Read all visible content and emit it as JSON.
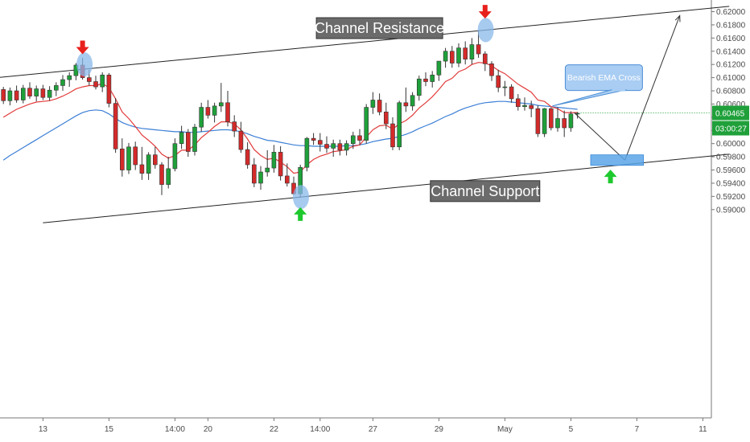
{
  "chart_data": {
    "type": "candlestick",
    "title": "",
    "xlabel": "",
    "ylabel": "",
    "ylim": [
      0.5888,
      0.621
    ],
    "y_ticks": [
      "0.62000",
      "0.61800",
      "0.61600",
      "0.61400",
      "0.61200",
      "0.61000",
      "0.60800",
      "0.60600",
      "0.60400",
      "0.60200",
      "0.60000",
      "0.59800",
      "0.59600",
      "0.59400",
      "0.59200",
      "0.59000"
    ],
    "x_ticks": [
      {
        "label": "13",
        "i": 6
      },
      {
        "label": "15",
        "i": 16
      },
      {
        "label": "14:00",
        "i": 26
      },
      {
        "label": "20",
        "i": 31
      },
      {
        "label": "22",
        "i": 41
      },
      {
        "label": "14:00",
        "i": 48
      },
      {
        "label": "27",
        "i": 56
      },
      {
        "label": "29",
        "i": 66
      },
      {
        "label": "May",
        "i": 76
      },
      {
        "label": "5",
        "i": 86
      },
      {
        "label": "7",
        "i": 96
      },
      {
        "label": "11",
        "i": 106
      }
    ],
    "last_price_label": "0.60465",
    "countdown_label": "03:00:27",
    "colors": {
      "up": "#1fa03a",
      "down": "#d42a2a",
      "ema_fast": "#e23b3b",
      "ema_slow": "#3c7fd6",
      "last_price_bg": "#1fa03a",
      "annotation_box": "#6b6b6b",
      "marker_red": "#e8201c",
      "marker_green": "#1ec92e",
      "ellipse": "#8ab8ea",
      "target_box": "#5aa5e8"
    },
    "candles": [
      [
        0.6082,
        0.6086,
        0.606,
        0.6065
      ],
      [
        0.6065,
        0.6085,
        0.6058,
        0.608
      ],
      [
        0.608,
        0.6088,
        0.6062,
        0.6066
      ],
      [
        0.6066,
        0.6089,
        0.6061,
        0.6084
      ],
      [
        0.6084,
        0.6093,
        0.6068,
        0.6072
      ],
      [
        0.6072,
        0.6088,
        0.6064,
        0.6083
      ],
      [
        0.6083,
        0.6089,
        0.6066,
        0.607
      ],
      [
        0.607,
        0.6087,
        0.6065,
        0.6081
      ],
      [
        0.6081,
        0.6093,
        0.6072,
        0.6088
      ],
      [
        0.6088,
        0.6104,
        0.608,
        0.6097
      ],
      [
        0.6097,
        0.6108,
        0.6086,
        0.6103
      ],
      [
        0.6103,
        0.6122,
        0.6096,
        0.6119
      ],
      [
        0.6119,
        0.613,
        0.6097,
        0.61
      ],
      [
        0.61,
        0.6112,
        0.6088,
        0.6094
      ],
      [
        0.6094,
        0.6103,
        0.6082,
        0.6086
      ],
      [
        0.6086,
        0.6108,
        0.6078,
        0.6104
      ],
      [
        0.6104,
        0.6107,
        0.6055,
        0.6061
      ],
      [
        0.6061,
        0.6069,
        0.5986,
        0.5992
      ],
      [
        0.5992,
        0.6008,
        0.595,
        0.596
      ],
      [
        0.596,
        0.6001,
        0.5954,
        0.5995
      ],
      [
        0.5995,
        0.6003,
        0.596,
        0.5968
      ],
      [
        0.5968,
        0.5995,
        0.5945,
        0.5955
      ],
      [
        0.5955,
        0.5987,
        0.5945,
        0.5983
      ],
      [
        0.5983,
        0.5995,
        0.5962,
        0.5968
      ],
      [
        0.5968,
        0.5972,
        0.5922,
        0.5938
      ],
      [
        0.5938,
        0.598,
        0.5932,
        0.5962
      ],
      [
        0.5962,
        0.6008,
        0.5958,
        0.6
      ],
      [
        0.6,
        0.6027,
        0.5992,
        0.6017
      ],
      [
        0.6017,
        0.6022,
        0.598,
        0.5988
      ],
      [
        0.5988,
        0.603,
        0.5982,
        0.6025
      ],
      [
        0.6025,
        0.6062,
        0.6018,
        0.6055
      ],
      [
        0.6055,
        0.6066,
        0.6038,
        0.6043
      ],
      [
        0.6043,
        0.6062,
        0.6032,
        0.6057
      ],
      [
        0.6057,
        0.6092,
        0.6048,
        0.6062
      ],
      [
        0.6062,
        0.608,
        0.6026,
        0.6033
      ],
      [
        0.6033,
        0.6043,
        0.601,
        0.6019
      ],
      [
        0.6019,
        0.6033,
        0.5986,
        0.5991
      ],
      [
        0.5991,
        0.6002,
        0.5962,
        0.5968
      ],
      [
        0.5968,
        0.5978,
        0.5934,
        0.594
      ],
      [
        0.594,
        0.5966,
        0.593,
        0.5957
      ],
      [
        0.5957,
        0.599,
        0.595,
        0.5963
      ],
      [
        0.5963,
        0.5998,
        0.5956,
        0.5987
      ],
      [
        0.5987,
        0.5996,
        0.5944,
        0.5951
      ],
      [
        0.5951,
        0.597,
        0.5935,
        0.594
      ],
      [
        0.594,
        0.595,
        0.5922,
        0.5924
      ],
      [
        0.5924,
        0.5968,
        0.5918,
        0.5964
      ],
      [
        0.5964,
        0.601,
        0.5958,
        0.6008
      ],
      [
        0.6008,
        0.6016,
        0.5998,
        0.6005
      ],
      [
        0.6005,
        0.6016,
        0.5988,
        0.5999
      ],
      [
        0.5999,
        0.6011,
        0.5986,
        0.5993
      ],
      [
        0.5993,
        0.6006,
        0.598,
        0.6
      ],
      [
        0.6,
        0.6006,
        0.5982,
        0.599
      ],
      [
        0.599,
        0.6005,
        0.5982,
        0.6
      ],
      [
        0.6,
        0.6018,
        0.5992,
        0.6012
      ],
      [
        0.6012,
        0.6022,
        0.5998,
        0.6005
      ],
      [
        0.6005,
        0.606,
        0.6,
        0.6055
      ],
      [
        0.6055,
        0.6078,
        0.6045,
        0.6066
      ],
      [
        0.6066,
        0.6076,
        0.6043,
        0.6048
      ],
      [
        0.6048,
        0.6062,
        0.6022,
        0.603
      ],
      [
        0.603,
        0.604,
        0.599,
        0.5995
      ],
      [
        0.5995,
        0.6065,
        0.599,
        0.6062
      ],
      [
        0.6062,
        0.6085,
        0.6048,
        0.6057
      ],
      [
        0.6057,
        0.6078,
        0.605,
        0.6073
      ],
      [
        0.6073,
        0.6103,
        0.6065,
        0.6098
      ],
      [
        0.6098,
        0.6108,
        0.6087,
        0.6094
      ],
      [
        0.6094,
        0.611,
        0.6085,
        0.6104
      ],
      [
        0.6104,
        0.6125,
        0.6095,
        0.6125
      ],
      [
        0.6125,
        0.6145,
        0.6115,
        0.614
      ],
      [
        0.614,
        0.6148,
        0.6115,
        0.6122
      ],
      [
        0.6122,
        0.6152,
        0.6116,
        0.6145
      ],
      [
        0.6145,
        0.6155,
        0.612,
        0.6128
      ],
      [
        0.6128,
        0.616,
        0.612,
        0.615
      ],
      [
        0.615,
        0.6172,
        0.613,
        0.6136
      ],
      [
        0.6136,
        0.614,
        0.611,
        0.6121
      ],
      [
        0.6121,
        0.6125,
        0.6095,
        0.6103
      ],
      [
        0.6103,
        0.6112,
        0.6078,
        0.6085
      ],
      [
        0.6085,
        0.6095,
        0.6072,
        0.6086
      ],
      [
        0.6086,
        0.609,
        0.6062,
        0.6068
      ],
      [
        0.6068,
        0.6075,
        0.605,
        0.6056
      ],
      [
        0.6056,
        0.607,
        0.605,
        0.6058
      ],
      [
        0.6058,
        0.6065,
        0.604,
        0.6053
      ],
      [
        0.6053,
        0.6058,
        0.601,
        0.6015
      ],
      [
        0.6015,
        0.6054,
        0.601,
        0.6053
      ],
      [
        0.6053,
        0.6055,
        0.602,
        0.6024
      ],
      [
        0.6024,
        0.6055,
        0.6018,
        0.6038
      ],
      [
        0.6038,
        0.605,
        0.601,
        0.6024
      ],
      [
        0.6024,
        0.6049,
        0.6018,
        0.6045
      ],
      [
        0.6045,
        0.6048,
        0.6038,
        0.6046
      ]
    ],
    "ema_fast": [
      0.604,
      0.6046,
      0.6052,
      0.6056,
      0.606,
      0.6063,
      0.6064,
      0.6065,
      0.6068,
      0.6072,
      0.6077,
      0.6083,
      0.6086,
      0.6088,
      0.6088,
      0.6091,
      0.6085,
      0.6068,
      0.6048,
      0.6038,
      0.6026,
      0.6013,
      0.6005,
      0.5996,
      0.5984,
      0.5978,
      0.5982,
      0.599,
      0.599,
      0.5998,
      0.6009,
      0.6017,
      0.6026,
      0.6033,
      0.6033,
      0.603,
      0.6021,
      0.6007,
      0.5991,
      0.5982,
      0.5976,
      0.5978,
      0.5972,
      0.5965,
      0.5955,
      0.5957,
      0.5968,
      0.5976,
      0.5981,
      0.5984,
      0.5988,
      0.5989,
      0.5991,
      0.5996,
      0.5998,
      0.601,
      0.6021,
      0.6027,
      0.6028,
      0.6022,
      0.603,
      0.6035,
      0.6043,
      0.6054,
      0.6062,
      0.6071,
      0.6082,
      0.6094,
      0.6099,
      0.6109,
      0.6113,
      0.612,
      0.6123,
      0.6122,
      0.6118,
      0.6111,
      0.6106,
      0.6098,
      0.609,
      0.6084,
      0.6078,
      0.6066,
      0.6064,
      0.6056,
      0.6053,
      0.6047,
      0.6047,
      0.6047
    ],
    "ema_slow": [
      0.5975,
      0.5982,
      0.5988,
      0.5994,
      0.6,
      0.6006,
      0.6012,
      0.6018,
      0.6024,
      0.603,
      0.6036,
      0.6042,
      0.6047,
      0.605,
      0.6051,
      0.605,
      0.6045,
      0.6038,
      0.6032,
      0.6028,
      0.6025,
      0.6023,
      0.6022,
      0.6021,
      0.602,
      0.6019,
      0.6018,
      0.6018,
      0.6017,
      0.6017,
      0.6018,
      0.6019,
      0.602,
      0.6021,
      0.6021,
      0.602,
      0.6018,
      0.6015,
      0.6011,
      0.6008,
      0.6005,
      0.6004,
      0.6002,
      0.6,
      0.5998,
      0.5997,
      0.5997,
      0.5996,
      0.5996,
      0.5996,
      0.5996,
      0.5996,
      0.5997,
      0.5997,
      0.5998,
      0.6,
      0.6003,
      0.6005,
      0.6007,
      0.6008,
      0.6011,
      0.6014,
      0.6018,
      0.6023,
      0.6027,
      0.6031,
      0.6036,
      0.6041,
      0.6045,
      0.605,
      0.6054,
      0.6057,
      0.606,
      0.6062,
      0.6063,
      0.6064,
      0.6064,
      0.6063,
      0.6062,
      0.6061,
      0.606,
      0.6058,
      0.6057,
      0.6056,
      0.6055,
      0.6054,
      0.6053,
      0.6052
    ],
    "channel_resistance": {
      "label": "Channel Resistance",
      "p1": {
        "i": -1,
        "price": 0.61
      },
      "p2": {
        "i": 110,
        "price": 0.6208
      }
    },
    "channel_support": {
      "label": "Channel Support",
      "p1": {
        "i": 6,
        "price": 0.588
      },
      "p2": {
        "i": 110,
        "price": 0.5984
      }
    },
    "annotations": [
      {
        "text": "Channel Resistance",
        "i": 57,
        "price": 0.6175
      },
      {
        "text": "Channel Support",
        "i": 73,
        "price": 0.5928
      },
      {
        "text": "Bearish EMA Cross",
        "i": 91,
        "price": 0.61
      }
    ],
    "projection": {
      "points": [
        {
          "i": 86.5,
          "price": 0.6047
        },
        {
          "i": 94.2,
          "price": 0.5975
        },
        {
          "i": 102.5,
          "price": 0.6194
        }
      ],
      "target_zone": {
        "i_from": 89,
        "i_to": 97,
        "price_from": 0.5967,
        "price_to": 0.5983
      }
    },
    "markers": [
      {
        "type": "arrow-down",
        "color": "red",
        "i": 12,
        "price": 0.6144
      },
      {
        "type": "arrow-down",
        "color": "red",
        "i": 73,
        "price": 0.6198
      },
      {
        "type": "arrow-up",
        "color": "green",
        "i": 45,
        "price": 0.5895
      },
      {
        "type": "arrow-up",
        "color": "green",
        "i": 92,
        "price": 0.5952
      }
    ],
    "highlight_ellipses": [
      {
        "i": 12.3,
        "price": 0.612
      },
      {
        "i": 73.1,
        "price": 0.6172
      },
      {
        "i": 45.1,
        "price": 0.5919
      }
    ]
  }
}
